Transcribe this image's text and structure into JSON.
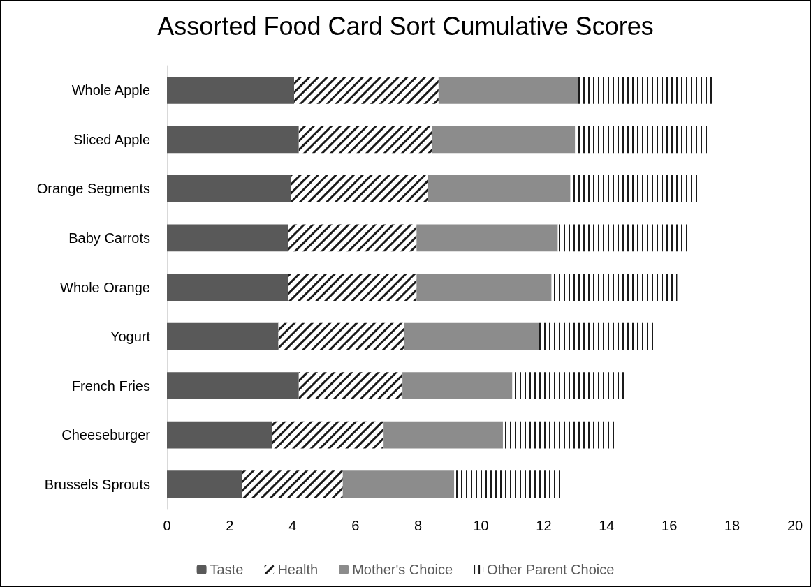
{
  "chart_data": {
    "type": "bar",
    "orientation": "horizontal",
    "stacked": true,
    "title": "Assorted Food Card Sort Cumulative Scores",
    "categories": [
      "Whole Apple",
      "Sliced Apple",
      "Orange Segments",
      "Baby Carrots",
      "Whole Orange",
      "Yogurt",
      "French Fries",
      "Cheeseburger",
      "Brussels Sprouts"
    ],
    "series": [
      {
        "name": "Taste",
        "color": "#595959",
        "values": [
          4.05,
          4.2,
          3.95,
          3.85,
          3.85,
          3.55,
          4.2,
          3.35,
          2.4
        ]
      },
      {
        "name": "Health",
        "color": "#1a1a1a",
        "values": [
          4.6,
          4.25,
          4.35,
          4.1,
          4.1,
          4.0,
          3.3,
          3.55,
          3.2
        ]
      },
      {
        "name": "Mother's Choice",
        "color": "#8c8c8c",
        "values": [
          4.45,
          4.55,
          4.55,
          4.5,
          4.3,
          4.3,
          3.5,
          3.8,
          3.55
        ]
      },
      {
        "name": "Other Parent Choice",
        "color": "#1a1a1a",
        "values": [
          4.3,
          4.25,
          4.05,
          4.2,
          4.0,
          3.65,
          3.55,
          3.6,
          3.4
        ]
      }
    ],
    "xlim": [
      0,
      20
    ],
    "xticks": [
      0,
      2,
      4,
      6,
      8,
      10,
      12,
      14,
      16,
      18,
      20
    ],
    "grid": false,
    "legend": "bottom"
  }
}
